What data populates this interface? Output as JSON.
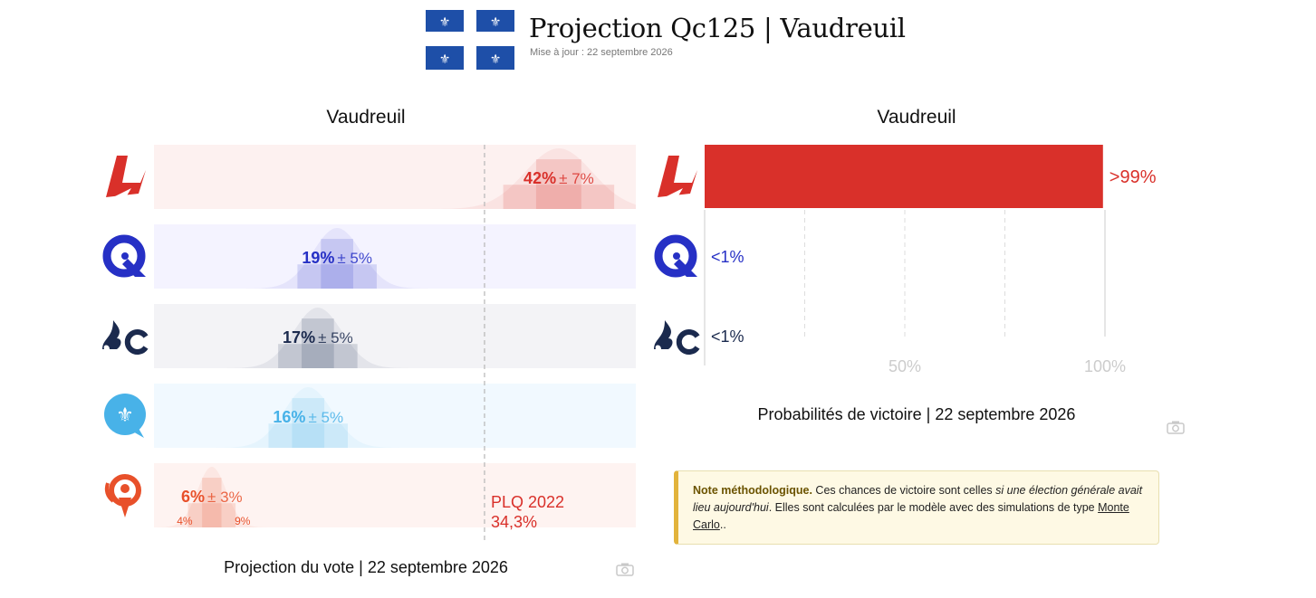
{
  "header": {
    "title": "Projection Qc125 | Vaudreuil",
    "updated": "Mise à jour : 22 septembre 2026"
  },
  "vote_panel": {
    "title": "Vaudreuil",
    "caption": "Projection du vote | 22 septembre 2026",
    "ref_label_1": "PLQ 2022",
    "ref_label_2": "34,3%"
  },
  "prob_panel": {
    "title": "Vaudreuil",
    "caption": "Probabilités de victoire | 22 septembre 2026"
  },
  "note": {
    "label": "Note méthodologique.",
    "text_1": " Ces chances de victoire sont celles ",
    "text_em": "si une élection générale avait lieu aujourd'hui",
    "text_2": ". Elles sont calculées par le modèle avec des simulations de type ",
    "link": "Monte Carlo",
    "text_3": ".."
  },
  "chart_data": [
    {
      "type": "bar",
      "subtype": "vote-projection-with-uncertainty",
      "title": "Vaudreuil",
      "caption": "Projection du vote | 22 septembre 2026",
      "x_range": [
        0,
        50
      ],
      "reference_line": {
        "value": 34.3,
        "label": "PLQ 2022",
        "value_label": "34,3%"
      },
      "series": [
        {
          "party": "PLQ",
          "value": 42,
          "moe": 7,
          "value_label": "42%",
          "moe_label": "± 7%",
          "color": "#d9302a",
          "bg": "#fdf1f0",
          "range_labels": []
        },
        {
          "party": "PQ",
          "value": 19,
          "moe": 5,
          "value_label": "19%",
          "moe_label": "± 5%",
          "color": "#2630c5",
          "bg": "#f4f3ff",
          "range_labels": []
        },
        {
          "party": "CAQ",
          "value": 17,
          "moe": 5,
          "value_label": "17%",
          "moe_label": "± 5%",
          "color": "#1b2a4e",
          "bg": "#f3f3f6",
          "range_labels": []
        },
        {
          "party": "PCQ",
          "value": 16,
          "moe": 5,
          "value_label": "16%",
          "moe_label": "± 5%",
          "color": "#48b2e8",
          "bg": "#f1f9ff",
          "range_labels": []
        },
        {
          "party": "QS",
          "value": 6,
          "moe": 3,
          "value_label": "6%",
          "moe_label": "± 3%",
          "color": "#e8502a",
          "bg": "#fef3f1",
          "range_labels": [
            "4%",
            "9%"
          ]
        }
      ]
    },
    {
      "type": "bar",
      "subtype": "horizontal",
      "title": "Vaudreuil",
      "caption": "Probabilités de victoire | 22 septembre 2026",
      "x_range": [
        0,
        100
      ],
      "x_ticks": [
        "50%",
        "100%"
      ],
      "series": [
        {
          "party": "PLQ",
          "value": 99.5,
          "label": ">99%",
          "color": "#d9302a"
        },
        {
          "party": "PQ",
          "value": 0.5,
          "label": "<1%",
          "color": "#2630c5"
        },
        {
          "party": "CAQ",
          "value": 0.5,
          "label": "<1%",
          "color": "#1b2a4e"
        }
      ]
    }
  ]
}
